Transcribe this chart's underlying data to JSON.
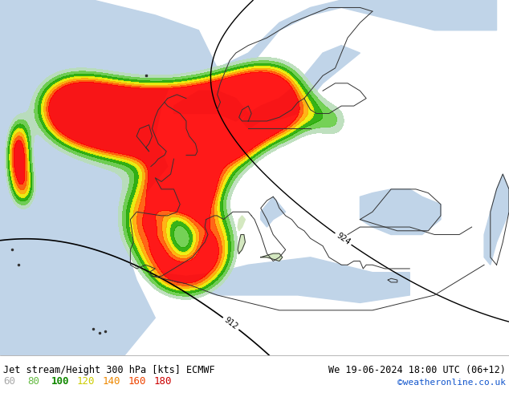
{
  "title_left": "Jet stream/Height 300 hPa [kts] ECMWF",
  "title_right": "We 19-06-2024 18:00 UTC (06+12)",
  "credit": "©weatheronline.co.uk",
  "legend_values": [
    60,
    80,
    100,
    120,
    140,
    160,
    180
  ],
  "legend_colors": [
    "#aaddaa",
    "#77cc55",
    "#22aa22",
    "#ffdd00",
    "#ffaa00",
    "#ff6600",
    "#ff2200"
  ],
  "fig_width": 6.34,
  "fig_height": 4.9,
  "dpi": 100,
  "bottom_bar_color": "#e8e8e8",
  "map_bg_light_green": "#c8e6b0",
  "map_bg_pale": "#e0eecc",
  "map_sea_color": "#c8d8f0",
  "contour_color": "#000000",
  "jet_level_60_color": "#b8ddb8",
  "jet_level_80_color": "#66cc44",
  "jet_level_100_color": "#22aa00",
  "jet_level_120_color": "#eeee00",
  "jet_level_140_color": "#ffaa00",
  "jet_level_160_color": "#ff5500",
  "jet_level_180_color": "#ff0000"
}
